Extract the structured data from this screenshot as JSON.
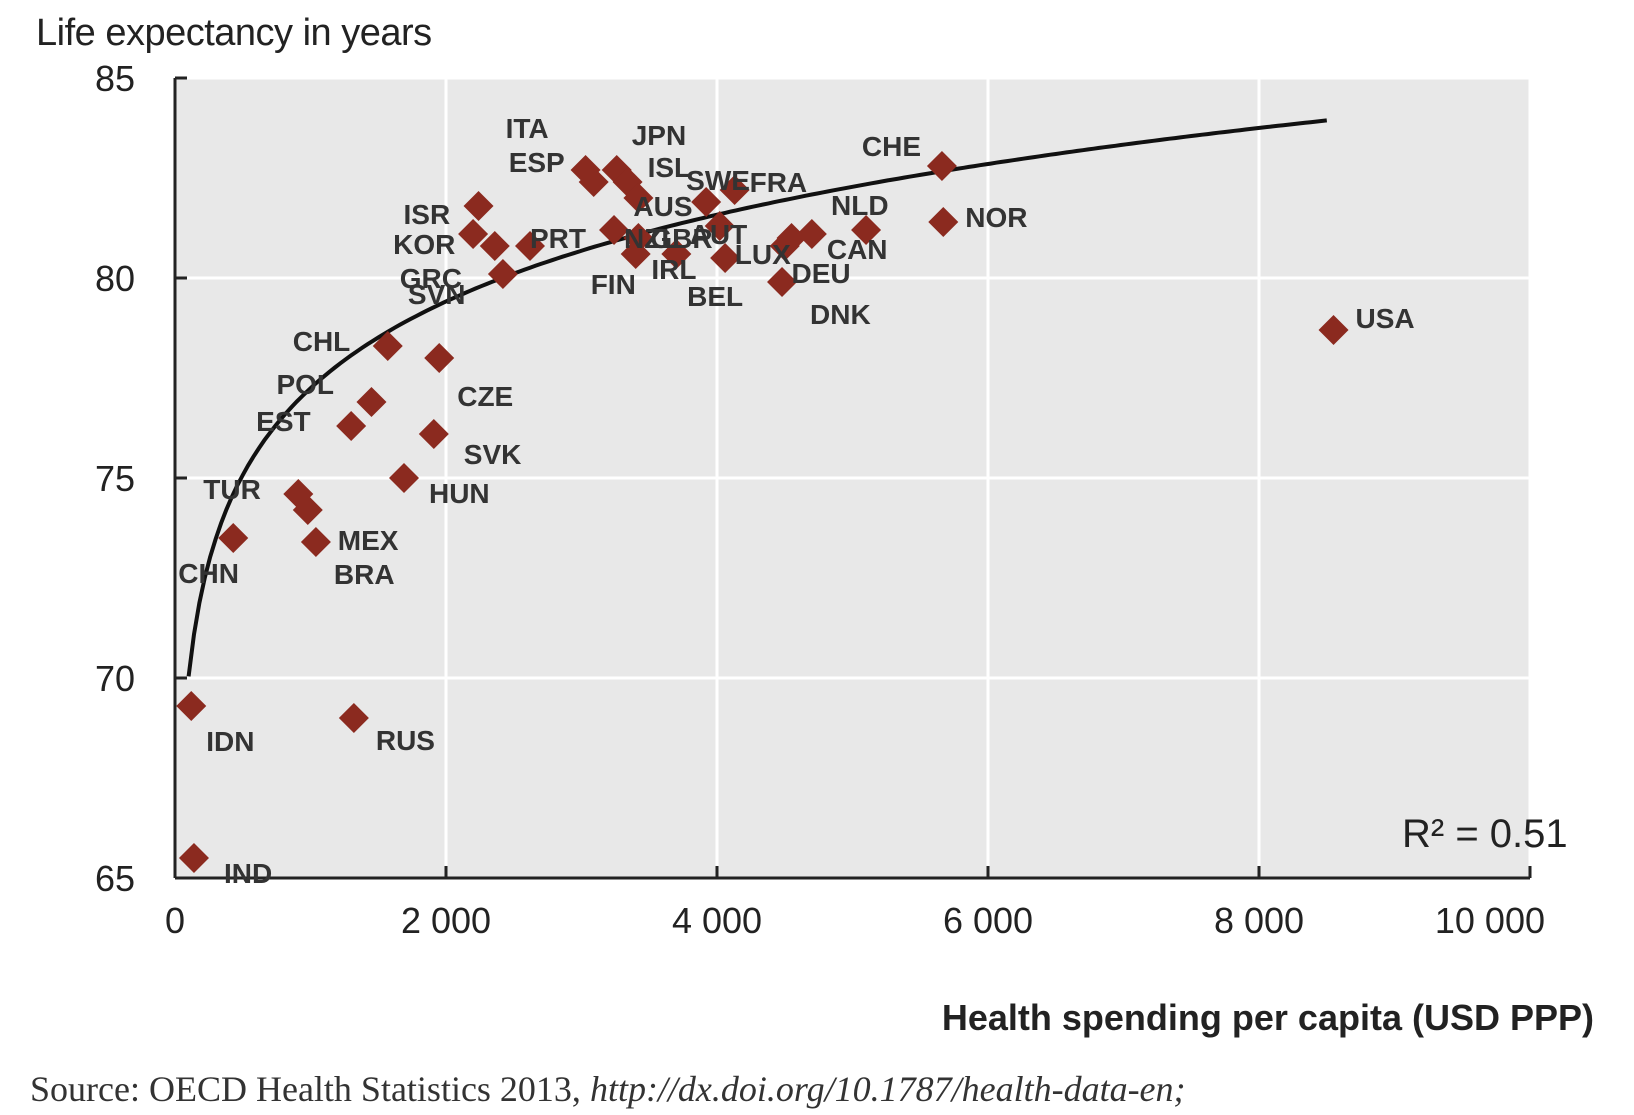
{
  "chart_data": {
    "type": "scatter",
    "ylabel": "Life expectancy in years",
    "xlabel": "Health spending per capita (USD PPP)",
    "xlim": [
      0,
      10000
    ],
    "ylim": [
      65,
      85
    ],
    "x_ticks": [
      0,
      2000,
      4000,
      6000,
      8000,
      10000
    ],
    "x_tick_labels": [
      "0",
      "2 000",
      "4 000",
      "6 000",
      "8 000",
      "10 000"
    ],
    "y_ticks": [
      65,
      70,
      75,
      80,
      85
    ],
    "y_tick_labels": [
      "65",
      "70",
      "75",
      "80",
      "85"
    ],
    "grid": true,
    "marker_color": "#8b2a1f",
    "trend_color": "#111111",
    "plot_bg": "#e8e8e8",
    "annotation": "R² = 0.51",
    "points": [
      {
        "label": "ITA",
        "x": 3030,
        "y": 82.7
      },
      {
        "label": "JPN",
        "x": 3260,
        "y": 82.7
      },
      {
        "label": "ISL",
        "x": 3340,
        "y": 82.4
      },
      {
        "label": "ESP",
        "x": 3090,
        "y": 82.4
      },
      {
        "label": "AUS",
        "x": 3420,
        "y": 82.0
      },
      {
        "label": "SWE",
        "x": 3920,
        "y": 81.9
      },
      {
        "label": "FRA",
        "x": 4130,
        "y": 82.2
      },
      {
        "label": "AUT",
        "x": 4020,
        "y": 81.3
      },
      {
        "label": "NLD",
        "x": 5100,
        "y": 81.2
      },
      {
        "label": "CHE",
        "x": 5660,
        "y": 82.8
      },
      {
        "label": "NOR",
        "x": 5670,
        "y": 81.4
      },
      {
        "label": "ISR",
        "x": 2240,
        "y": 81.8
      },
      {
        "label": "KOR",
        "x": 2200,
        "y": 81.1
      },
      {
        "label": "PRT",
        "x": 2620,
        "y": 80.8
      },
      {
        "label": "NZL",
        "x": 3240,
        "y": 81.2
      },
      {
        "label": "GBR",
        "x": 3420,
        "y": 81.0
      },
      {
        "label": "GRC",
        "x": 2360,
        "y": 80.8
      },
      {
        "label": "SVN",
        "x": 2420,
        "y": 80.1
      },
      {
        "label": "FIN",
        "x": 3400,
        "y": 80.6
      },
      {
        "label": "IRL",
        "x": 3700,
        "y": 80.6
      },
      {
        "label": "BEL",
        "x": 4060,
        "y": 80.5
      },
      {
        "label": "LUX",
        "x": 4500,
        "y": 80.8
      },
      {
        "label": "DEU",
        "x": 4550,
        "y": 81.0
      },
      {
        "label": "CAN",
        "x": 4700,
        "y": 81.1
      },
      {
        "label": "DNK",
        "x": 4480,
        "y": 79.9
      },
      {
        "label": "USA",
        "x": 8550,
        "y": 78.7
      },
      {
        "label": "CHL",
        "x": 1570,
        "y": 78.3
      },
      {
        "label": "CZE",
        "x": 1950,
        "y": 78.0
      },
      {
        "label": "POL",
        "x": 1450,
        "y": 76.9
      },
      {
        "label": "EST",
        "x": 1300,
        "y": 76.3
      },
      {
        "label": "SVK",
        "x": 1910,
        "y": 76.1
      },
      {
        "label": "HUN",
        "x": 1690,
        "y": 75.0
      },
      {
        "label": "TUR",
        "x": 910,
        "y": 74.6
      },
      {
        "label": "MEX",
        "x": 980,
        "y": 74.2
      },
      {
        "label": "BRA",
        "x": 1040,
        "y": 73.4
      },
      {
        "label": "CHN",
        "x": 430,
        "y": 73.5
      },
      {
        "label": "IDN",
        "x": 120,
        "y": 69.3
      },
      {
        "label": "RUS",
        "x": 1320,
        "y": 69.0
      },
      {
        "label": "IND",
        "x": 140,
        "y": 65.5
      }
    ],
    "trend_line": {
      "model": "logarithmic",
      "a": 55.63,
      "b": 3.129
    }
  },
  "source": {
    "prefix": "Source:  OECD Health Statistics 2013, ",
    "url": "http://dx.doi.org/10.1787/health-data-en;"
  }
}
